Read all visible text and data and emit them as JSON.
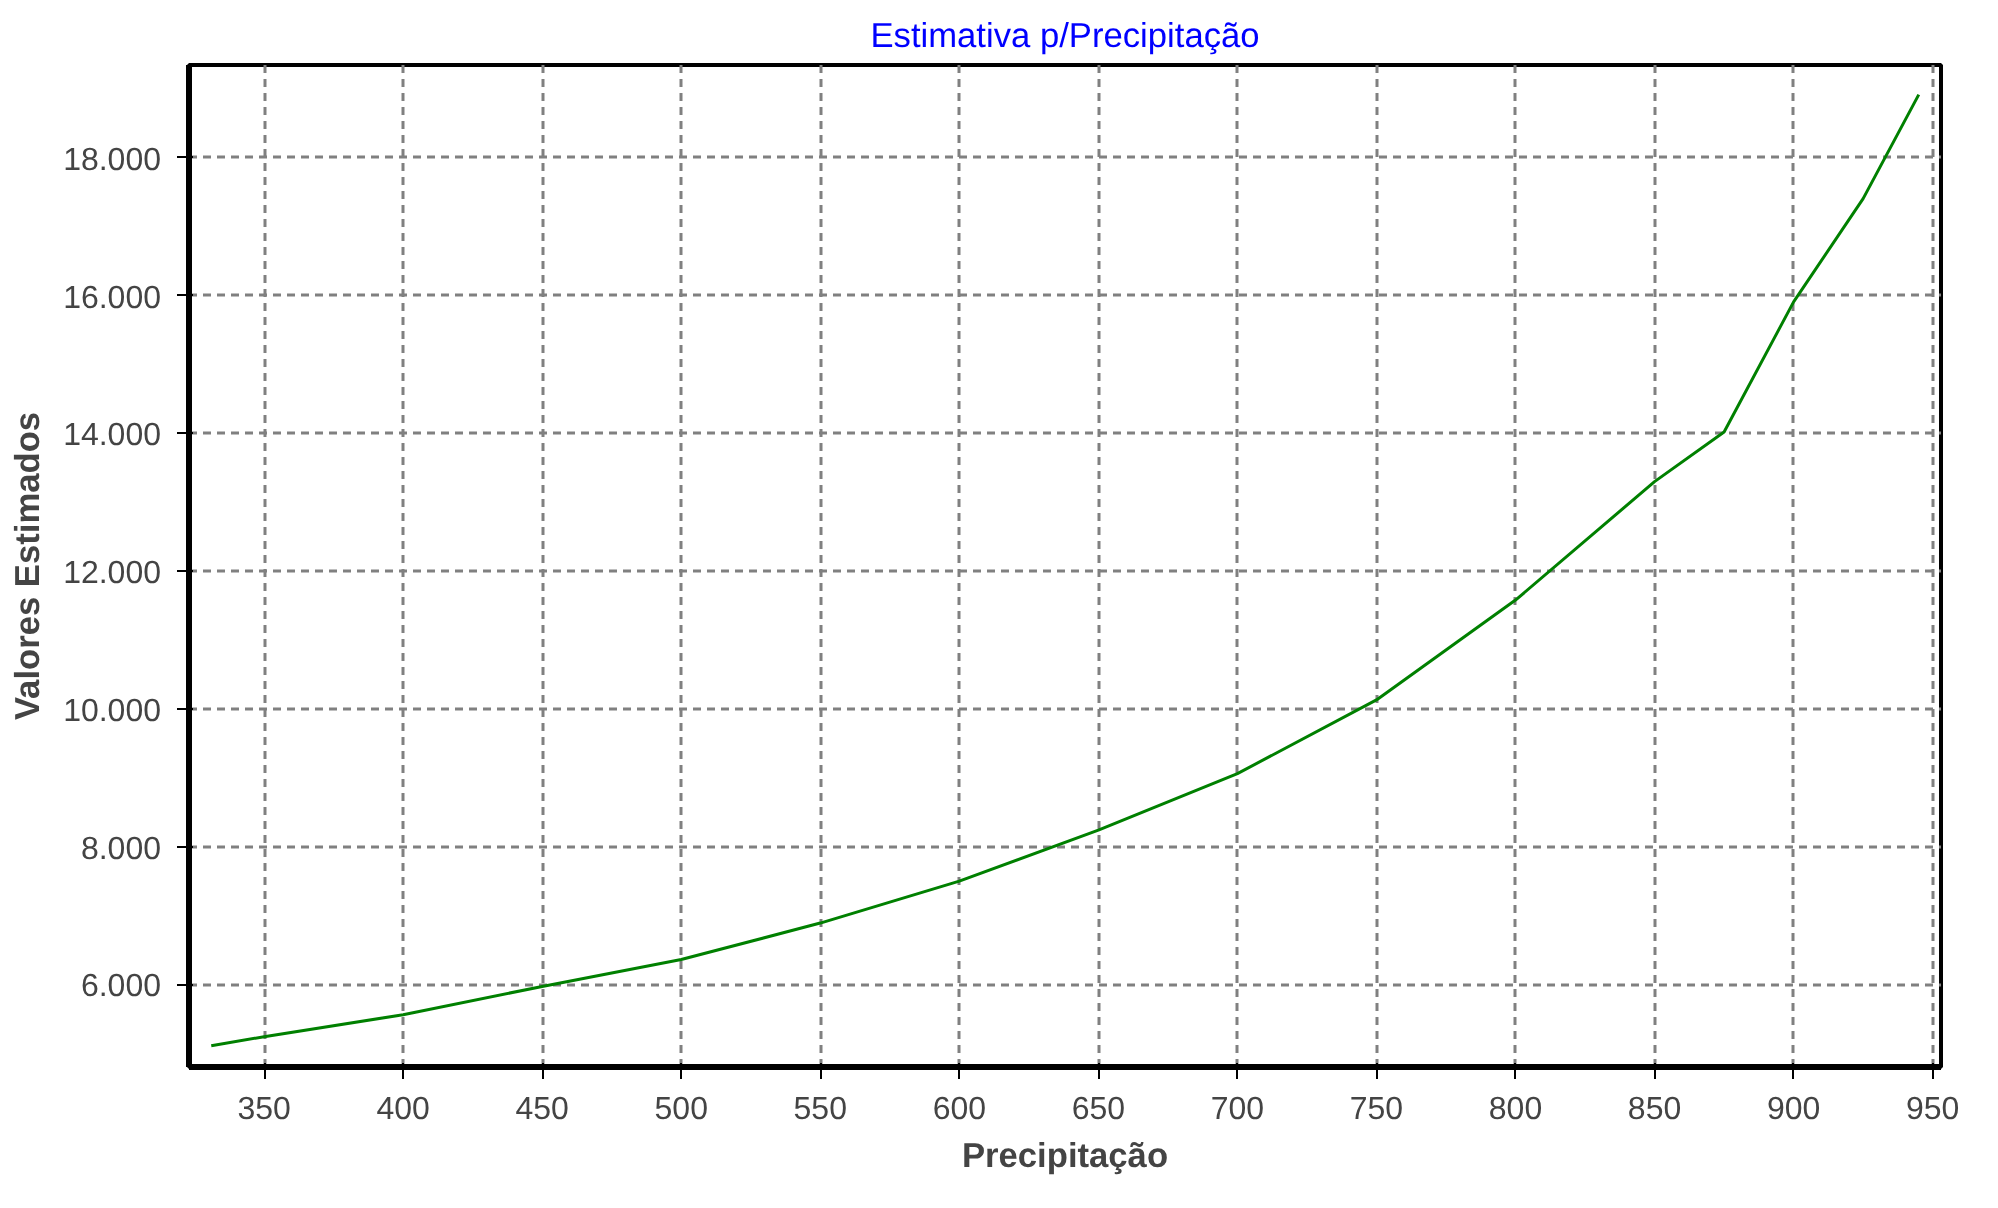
{
  "chart_data": {
    "type": "line",
    "title": "Estimativa p/Precipitação",
    "xlabel": "Precipitação",
    "ylabel": "Valores Estimados",
    "x": [
      331,
      350,
      400,
      450,
      500,
      550,
      600,
      650,
      700,
      750,
      800,
      850,
      875,
      900,
      925,
      945
    ],
    "series": [
      {
        "color": "#008000",
        "values": [
          5110,
          5240,
          5560,
          5970,
          6360,
          6890,
          7500,
          8240,
          9060,
          10130,
          11580,
          13300,
          14020,
          15910,
          17410,
          18920
        ]
      }
    ],
    "xlim": [
      323,
      953
    ],
    "ylim": [
      4800,
      19350
    ],
    "xticks": [
      350,
      400,
      450,
      500,
      550,
      600,
      650,
      700,
      750,
      800,
      850,
      900,
      950
    ],
    "yticks": [
      {
        "value": 6000,
        "label": "6.000"
      },
      {
        "value": 8000,
        "label": "8.000"
      },
      {
        "value": 10000,
        "label": "10.000"
      },
      {
        "value": 12000,
        "label": "12.000"
      },
      {
        "value": 14000,
        "label": "14.000"
      },
      {
        "value": 16000,
        "label": "16.000"
      },
      {
        "value": 18000,
        "label": "18.000"
      }
    ],
    "grid": true,
    "line_style": "solid",
    "marker": "none"
  }
}
